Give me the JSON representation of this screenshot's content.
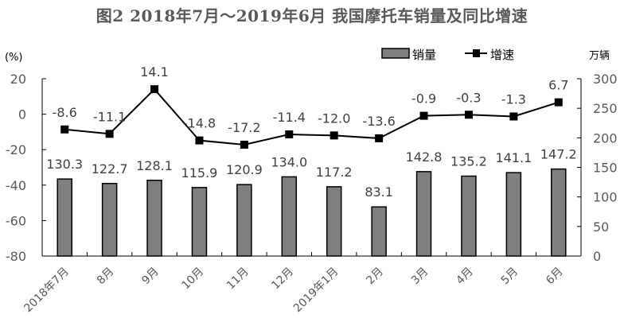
{
  "chart_data": {
    "type": "bar+line",
    "title": "图2  2018年7月～2019年6月  我国摩托车销量及同比增速",
    "categories": [
      "2018年7月",
      "8月",
      "9月",
      "10月",
      "11月",
      "12月",
      "2019年1月",
      "2月",
      "3月",
      "4月",
      "5月",
      "6月"
    ],
    "series": [
      {
        "name": "销量",
        "type": "bar",
        "axis": "right",
        "unit": "万辆",
        "values": [
          130.3,
          122.7,
          128.1,
          115.9,
          120.9,
          134.0,
          117.2,
          83.1,
          142.8,
          135.2,
          141.1,
          147.2
        ],
        "labels": [
          "130.3",
          "122.7",
          "128.1",
          "115.9",
          "120.9",
          "134.0",
          "117.2",
          "83.1",
          "142.8",
          "135.2",
          "141.1",
          "147.2"
        ],
        "color": "#7f7f7f"
      },
      {
        "name": "增速",
        "type": "line",
        "axis": "left",
        "unit": "%",
        "values": [
          -8.6,
          -11.1,
          14.1,
          -14.8,
          -17.2,
          -11.4,
          -12.0,
          -13.6,
          -0.9,
          -0.3,
          -1.3,
          6.7
        ],
        "labels": [
          "-8.6",
          "-11.1",
          "14.1",
          "-14.8",
          "-17.2",
          "-11.4",
          "-12.0",
          "-13.6",
          "-0.9",
          "-0.3",
          "-1.3",
          "6.7"
        ],
        "color": "#000000"
      }
    ],
    "left_axis": {
      "label": "(%)",
      "ylim": [
        -80,
        20
      ],
      "ticks": [
        "20",
        "0",
        "-20",
        "-40",
        "-60",
        "-80"
      ]
    },
    "right_axis": {
      "label": "万辆",
      "ylim": [
        0,
        300
      ],
      "ticks": [
        "300",
        "250",
        "200",
        "150",
        "100",
        "50",
        "0"
      ]
    },
    "legend": {
      "position": "top-right",
      "entries": [
        "销量",
        "增速"
      ]
    },
    "grid": false
  }
}
